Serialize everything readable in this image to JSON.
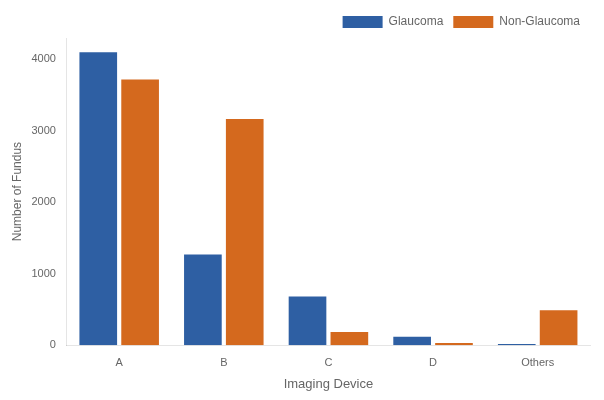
{
  "chart_data": {
    "type": "bar",
    "categories": [
      "A",
      "B",
      "C",
      "D",
      "Others"
    ],
    "series": [
      {
        "name": "Glaucoma",
        "color": "#2e5fa3",
        "values": [
          4100,
          1270,
          680,
          120,
          18
        ]
      },
      {
        "name": "Non-Glaucoma",
        "color": "#d4691e",
        "values": [
          3720,
          3165,
          185,
          30,
          490
        ]
      }
    ],
    "xlabel": "Imaging Device",
    "ylabel": "Number of Fundus",
    "ylim": [
      0,
      4300
    ],
    "yticks": [
      0,
      1000,
      2000,
      3000,
      4000
    ],
    "grid": false,
    "legend": "upper right"
  }
}
